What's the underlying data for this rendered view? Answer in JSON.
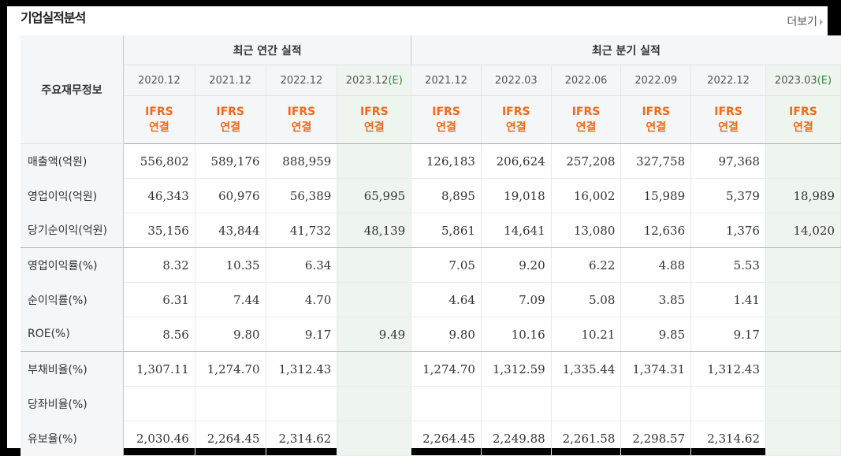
{
  "title": "기업실적분석",
  "more_label": "더보기",
  "row_header_label": "주요재무정보",
  "groups": {
    "annual": "최근 연간 실적",
    "quarterly": "최근 분기 실적"
  },
  "dates": [
    "2020.12",
    "2021.12",
    "2022.12",
    "2023.12",
    "2021.12",
    "2022.03",
    "2022.06",
    "2022.09",
    "2022.12",
    "2023.03"
  ],
  "estimate_suffix": "(E)",
  "ifrs_line1": "IFRS",
  "ifrs_line2": "연결",
  "rows": [
    {
      "label": "매출액(억원)",
      "values": [
        "556,802",
        "589,176",
        "888,959",
        "",
        "126,183",
        "206,624",
        "257,208",
        "327,758",
        "97,368",
        ""
      ]
    },
    {
      "label": "영업이익(억원)",
      "values": [
        "46,343",
        "60,976",
        "56,389",
        "65,995",
        "8,895",
        "19,018",
        "16,002",
        "15,989",
        "5,379",
        "18,989"
      ]
    },
    {
      "label": "당기순이익(억원)",
      "values": [
        "35,156",
        "43,844",
        "41,732",
        "48,139",
        "5,861",
        "14,641",
        "13,080",
        "12,636",
        "1,376",
        "14,020"
      ]
    },
    {
      "label": "영업이익률(%)",
      "values": [
        "8.32",
        "10.35",
        "6.34",
        "",
        "7.05",
        "9.20",
        "6.22",
        "4.88",
        "5.53",
        ""
      ]
    },
    {
      "label": "순이익률(%)",
      "values": [
        "6.31",
        "7.44",
        "4.70",
        "",
        "4.64",
        "7.09",
        "5.08",
        "3.85",
        "1.41",
        ""
      ]
    },
    {
      "label": "ROE(%)",
      "values": [
        "8.56",
        "9.80",
        "9.17",
        "9.49",
        "9.80",
        "10.16",
        "10.21",
        "9.85",
        "9.17",
        ""
      ]
    },
    {
      "label": "부채비율(%)",
      "values": [
        "1,307.11",
        "1,274.70",
        "1,312.43",
        "",
        "1,274.70",
        "1,312.59",
        "1,335.44",
        "1,374.31",
        "1,312.43",
        ""
      ]
    },
    {
      "label": "당좌비율(%)",
      "values": [
        "",
        "",
        "",
        "",
        "",
        "",
        "",
        "",
        "",
        ""
      ]
    },
    {
      "label": "유보율(%)",
      "values": [
        "2,030.46",
        "2,264.45",
        "2,314.62",
        "",
        "2,264.45",
        "2,249.88",
        "2,261.58",
        "2,298.57",
        "2,314.62",
        ""
      ]
    }
  ]
}
